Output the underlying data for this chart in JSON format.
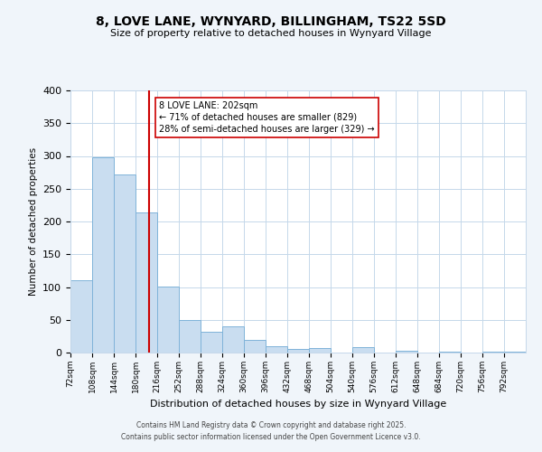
{
  "title": "8, LOVE LANE, WYNYARD, BILLINGHAM, TS22 5SD",
  "subtitle": "Size of property relative to detached houses in Wynyard Village",
  "xlabel": "Distribution of detached houses by size in Wynyard Village",
  "ylabel": "Number of detached properties",
  "bar_edges": [
    72,
    108,
    144,
    180,
    216,
    252,
    288,
    324,
    360,
    396,
    432,
    468,
    504,
    540,
    576,
    612,
    648,
    684,
    720,
    756,
    792
  ],
  "bar_heights": [
    110,
    298,
    272,
    214,
    101,
    50,
    32,
    40,
    20,
    10,
    5,
    7,
    0,
    8,
    0,
    3,
    0,
    2,
    0,
    2,
    2
  ],
  "bar_color": "#c9ddf0",
  "bar_edge_color": "#7fb3d9",
  "reference_line_x": 202,
  "reference_line_color": "#cc0000",
  "ylim": [
    0,
    400
  ],
  "yticks": [
    0,
    50,
    100,
    150,
    200,
    250,
    300,
    350,
    400
  ],
  "annotation_title": "8 LOVE LANE: 202sqm",
  "annotation_line1": "← 71% of detached houses are smaller (829)",
  "annotation_line2": "28% of semi-detached houses are larger (329) →",
  "footer_line1": "Contains HM Land Registry data © Crown copyright and database right 2025.",
  "footer_line2": "Contains public sector information licensed under the Open Government Licence v3.0.",
  "bg_color": "#f0f5fa",
  "plot_bg_color": "#ffffff"
}
